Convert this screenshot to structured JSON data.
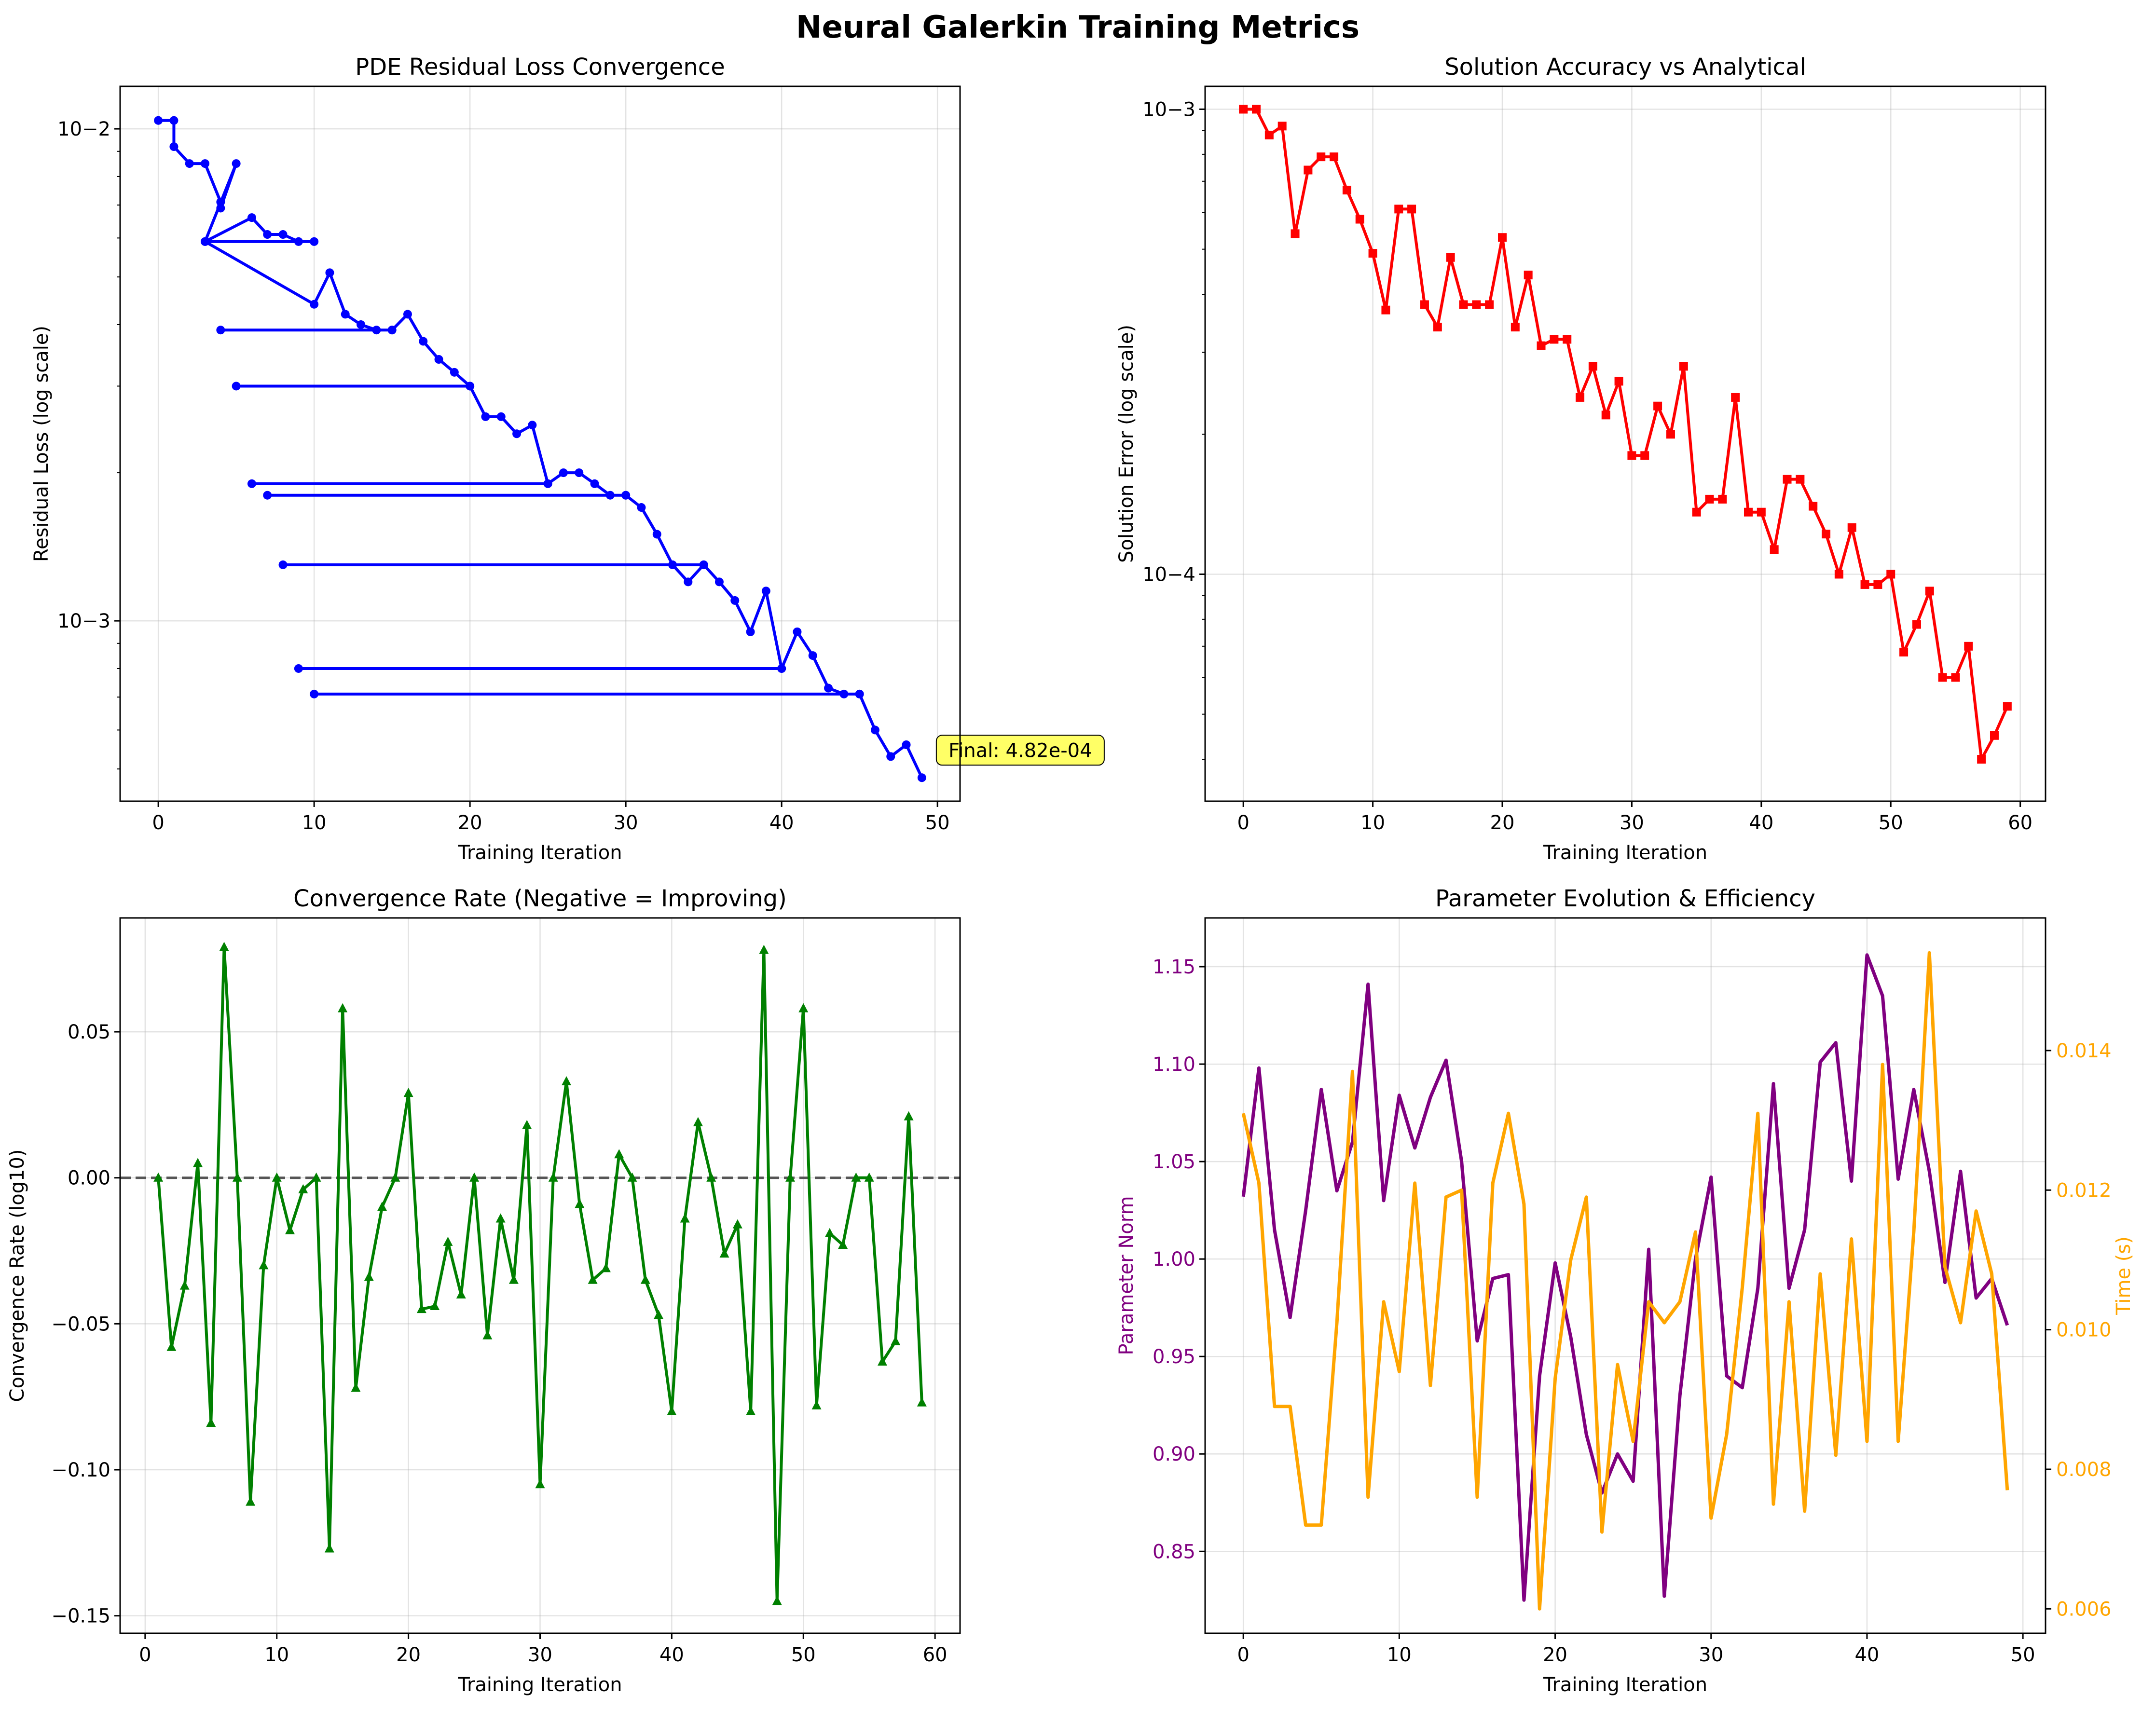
{
  "figure": {
    "suptitle": "Neural Galerkin Training Metrics"
  },
  "chart_data": [
    {
      "type": "line",
      "title": "PDE Residual Loss Convergence",
      "xlabel": "Training Iteration",
      "ylabel": "Residual Loss (log scale)",
      "yscale": "log",
      "xlim": [
        -2.45,
        51.45
      ],
      "ylim": [
        0.00043,
        0.0122
      ],
      "xticks": [
        "0",
        "10",
        "20",
        "30",
        "40",
        "50"
      ],
      "yticks": [
        "10−2",
        "10−3"
      ],
      "grid": true,
      "color": "#0000ff",
      "marker": "circle",
      "annotation": {
        "text": "Final: 4.82e-04",
        "style": "yellow box"
      },
      "series": [
        {
          "x": [
            0,
            1,
            1,
            2,
            3,
            4,
            4,
            5,
            3,
            6,
            7,
            8,
            9,
            10,
            3,
            10,
            11,
            12,
            13,
            14,
            15,
            4,
            15,
            16,
            17,
            18,
            19,
            20,
            5,
            20,
            21,
            22,
            23,
            24,
            25,
            6,
            25,
            26,
            27,
            28,
            29,
            30,
            7,
            30,
            31,
            32,
            33,
            34,
            35,
            8,
            35,
            36,
            37,
            38,
            39,
            40,
            9,
            40,
            41,
            42,
            43,
            44,
            45,
            10,
            45,
            46,
            47,
            48,
            49
          ],
          "y": [
            0.0104,
            0.0104,
            0.0092,
            0.0085,
            0.0085,
            0.0071,
            0.0069,
            0.0085,
            0.0059,
            0.0066,
            0.0061,
            0.0061,
            0.0059,
            0.0059,
            0.0059,
            0.0044,
            0.0051,
            0.0042,
            0.004,
            0.0039,
            0.0039,
            0.0039,
            0.0039,
            0.0042,
            0.0037,
            0.0034,
            0.0032,
            0.003,
            0.003,
            0.003,
            0.0026,
            0.0026,
            0.0024,
            0.0025,
            0.0019,
            0.0019,
            0.0019,
            0.002,
            0.002,
            0.0019,
            0.0018,
            0.0018,
            0.0018,
            0.0018,
            0.0017,
            0.0015,
            0.0013,
            0.0012,
            0.0013,
            0.0013,
            0.0013,
            0.0012,
            0.0011,
            0.00095,
            0.00115,
            0.0008,
            0.0008,
            0.0008,
            0.00095,
            0.00085,
            0.00073,
            0.00071,
            0.00071,
            0.00071,
            0.00071,
            0.0006,
            0.00053,
            0.00056,
            0.00048
          ]
        }
      ]
    },
    {
      "type": "line",
      "title": "Solution Accuracy vs Analytical",
      "xlabel": "Training Iteration",
      "ylabel": "Solution Error (log scale)",
      "yscale": "log",
      "xlim": [
        -2.95,
        61.95
      ],
      "ylim": [
        3.25e-05,
        0.00112
      ],
      "xticks": [
        "0",
        "10",
        "20",
        "30",
        "40",
        "50",
        "60"
      ],
      "yticks": [
        "10−3",
        "10−4"
      ],
      "grid": true,
      "color": "#ff0000",
      "marker": "square",
      "series": [
        {
          "x": [
            0,
            1,
            2,
            3,
            4,
            5,
            6,
            7,
            8,
            9,
            10,
            11,
            12,
            13,
            14,
            15,
            16,
            17,
            18,
            19,
            20,
            21,
            22,
            23,
            24,
            25,
            26,
            27,
            28,
            29,
            30,
            31,
            32,
            33,
            34,
            35,
            36,
            37,
            38,
            39,
            40,
            41,
            42,
            43,
            44,
            45,
            46,
            47,
            48,
            49,
            50,
            51,
            52,
            53,
            54,
            55,
            56,
            57,
            58,
            59
          ],
          "y": [
            0.001,
            0.001,
            0.00088,
            0.00092,
            0.00054,
            0.00074,
            0.00079,
            0.00079,
            0.00067,
            0.00058,
            0.00049,
            0.00037,
            0.00061,
            0.00061,
            0.00038,
            0.00034,
            0.00048,
            0.00038,
            0.00038,
            0.00038,
            0.00053,
            0.00034,
            0.00044,
            0.00031,
            0.00032,
            0.00032,
            0.00024,
            0.00028,
            0.00022,
            0.00026,
            0.00018,
            0.00018,
            0.00023,
            0.0002,
            0.00028,
            0.000136,
            0.000145,
            0.000145,
            0.00024,
            0.000136,
            0.000136,
            0.000113,
            0.00016,
            0.00016,
            0.00014,
            0.000122,
            0.0001,
            0.000126,
            9.5e-05,
            9.5e-05,
            0.0001,
            6.8e-05,
            7.8e-05,
            9.2e-05,
            6e-05,
            6e-05,
            7e-05,
            4e-05,
            4.5e-05,
            5.2e-05
          ]
        }
      ]
    },
    {
      "type": "line",
      "title": "Convergence Rate (Negative = Improving)",
      "xlabel": "Training Iteration",
      "ylabel": "Convergence Rate (log10)",
      "xlim": [
        -1.9,
        61.9
      ],
      "ylim": [
        -0.156,
        0.089
      ],
      "xticks": [
        0,
        10,
        20,
        30,
        40,
        50,
        60
      ],
      "yticks": [
        0.05,
        0,
        -0.05,
        -0.1,
        -0.15
      ],
      "ytick_labels": [
        "0.05",
        "0.00",
        "−0.05",
        "−0.10",
        "−0.15"
      ],
      "grid": true,
      "color": "#008000",
      "marker": "triangle",
      "reference_line": {
        "y": 0,
        "style": "dashed",
        "color": "#555555"
      },
      "series": [
        {
          "x": [
            1,
            2,
            3,
            4,
            5,
            6,
            7,
            8,
            9,
            10,
            11,
            12,
            13,
            14,
            15,
            16,
            17,
            18,
            19,
            20,
            21,
            22,
            23,
            24,
            25,
            26,
            27,
            28,
            29,
            30,
            31,
            32,
            33,
            34,
            35,
            36,
            37,
            38,
            39,
            40,
            41,
            42,
            43,
            44,
            45,
            46,
            47,
            48,
            49,
            50,
            51,
            52,
            53,
            54,
            55,
            56,
            57,
            58,
            59
          ],
          "y": [
            0,
            -0.058,
            -0.037,
            0.005,
            -0.084,
            0.079,
            0,
            -0.111,
            -0.03,
            0,
            -0.018,
            -0.004,
            0,
            -0.127,
            0.058,
            -0.072,
            -0.034,
            -0.01,
            0,
            0.029,
            -0.045,
            -0.044,
            -0.022,
            -0.04,
            0,
            -0.054,
            -0.014,
            -0.035,
            0.018,
            -0.105,
            0,
            0.033,
            -0.009,
            -0.035,
            -0.031,
            0.008,
            0,
            -0.035,
            -0.047,
            -0.08,
            -0.014,
            0.019,
            0,
            -0.026,
            -0.016,
            -0.08,
            0.078,
            -0.145,
            0,
            0.058,
            -0.078,
            -0.019,
            -0.023,
            0,
            0,
            -0.063,
            -0.056,
            0.021,
            -0.077
          ]
        }
      ]
    },
    {
      "type": "line",
      "title": "Parameter Evolution & Efficiency",
      "xlabel": "Training Iteration",
      "ylabel": "Parameter Norm",
      "ylabel_right": "Time (s)",
      "xlim": [
        -2.45,
        51.45
      ],
      "ylim": [
        0.808,
        1.175
      ],
      "ylim_right": [
        0.00565,
        0.0159
      ],
      "xticks": [
        0,
        10,
        20,
        30,
        40,
        50
      ],
      "yticks": [
        0.85,
        0.9,
        0.95,
        1.0,
        1.05,
        1.1,
        1.15
      ],
      "ytick_labels": [
        "0.85",
        "0.90",
        "0.95",
        "1.00",
        "1.05",
        "1.10",
        "1.15"
      ],
      "yticks_right": [
        0.006,
        0.008,
        0.01,
        0.012,
        0.014
      ],
      "ytick_labels_right": [
        "0.006",
        "0.008",
        "0.010",
        "0.012",
        "0.014"
      ],
      "grid": true,
      "left_color": "#800080",
      "right_color": "#ffa500",
      "series": [
        {
          "axis": "left",
          "x": [
            0,
            1,
            2,
            3,
            4,
            5,
            6,
            7,
            8,
            9,
            10,
            11,
            12,
            13,
            14,
            15,
            16,
            17,
            18,
            19,
            20,
            21,
            22,
            23,
            24,
            25,
            26,
            27,
            28,
            29,
            30,
            31,
            32,
            33,
            34,
            35,
            36,
            37,
            38,
            39,
            40,
            41,
            42,
            43,
            44,
            45,
            46,
            47,
            48,
            49
          ],
          "values": [
            1.032,
            1.098,
            1.015,
            0.97,
            1.025,
            1.087,
            1.035,
            1.06,
            1.141,
            1.03,
            1.084,
            1.057,
            1.083,
            1.102,
            1.05,
            0.958,
            0.99,
            0.992,
            0.825,
            0.94,
            0.998,
            0.96,
            0.91,
            0.88,
            0.9,
            0.886,
            1.005,
            0.827,
            0.93,
            1.0,
            1.042,
            0.94,
            0.934,
            0.985,
            1.09,
            0.985,
            1.015,
            1.101,
            1.111,
            1.04,
            1.156,
            1.135,
            1.041,
            1.087,
            1.045,
            0.988,
            1.045,
            0.98,
            0.99,
            0.966
          ]
        },
        {
          "axis": "right",
          "x": [
            0,
            1,
            2,
            3,
            4,
            5,
            6,
            7,
            8,
            9,
            10,
            11,
            12,
            13,
            14,
            15,
            16,
            17,
            18,
            19,
            20,
            21,
            22,
            23,
            24,
            25,
            26,
            27,
            28,
            29,
            30,
            31,
            32,
            33,
            34,
            35,
            36,
            37,
            38,
            39,
            40,
            41,
            42,
            43,
            44,
            45,
            46,
            47,
            48,
            49
          ],
          "values": [
            0.0131,
            0.0121,
            0.0089,
            0.0089,
            0.0072,
            0.0072,
            0.0101,
            0.0137,
            0.0076,
            0.0104,
            0.0094,
            0.0121,
            0.0092,
            0.0119,
            0.012,
            0.0076,
            0.0121,
            0.0131,
            0.0118,
            0.006,
            0.0093,
            0.011,
            0.0119,
            0.0071,
            0.0095,
            0.0084,
            0.0104,
            0.0101,
            0.0104,
            0.0114,
            0.0073,
            0.0085,
            0.0106,
            0.0131,
            0.0075,
            0.0104,
            0.0074,
            0.0108,
            0.0082,
            0.0113,
            0.0084,
            0.0138,
            0.0084,
            0.0114,
            0.0154,
            0.0109,
            0.0101,
            0.0117,
            0.0108,
            0.0077
          ]
        }
      ]
    }
  ]
}
